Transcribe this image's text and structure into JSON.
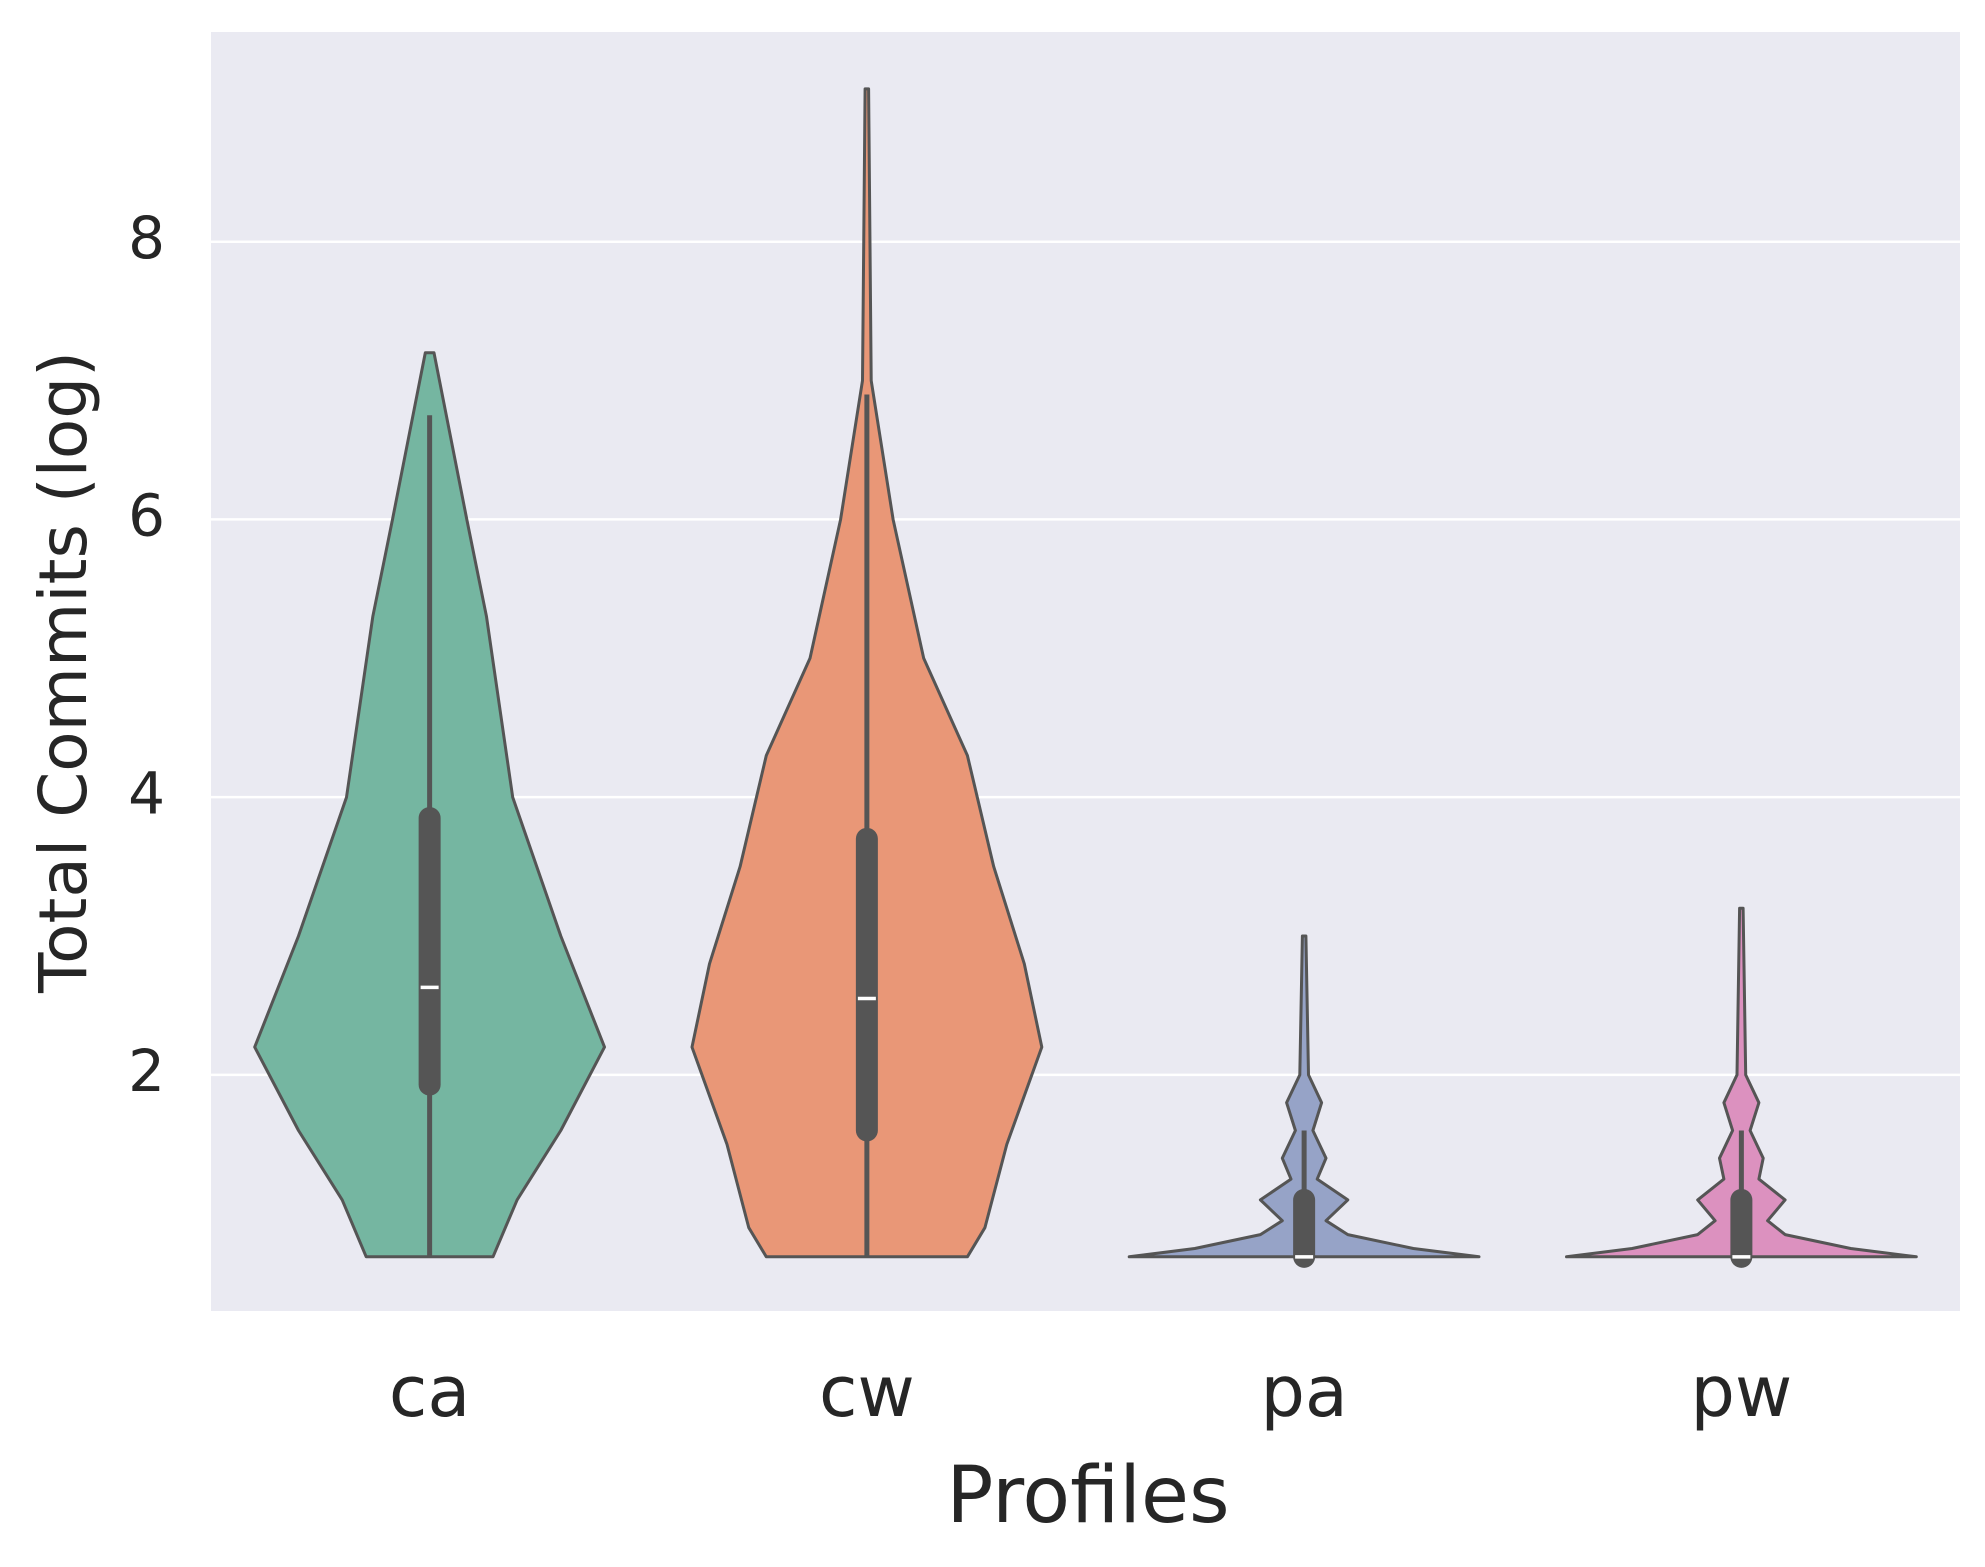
{
  "chart_data": {
    "type": "violin",
    "x_label": "Profiles",
    "y_label": "Total Commits (log)",
    "categories": [
      "ca",
      "cw",
      "pa",
      "pw"
    ],
    "ylim": [
      0.3,
      9.51
    ],
    "yticks": [
      2,
      4,
      6,
      8
    ],
    "grid": true,
    "series": [
      {
        "name": "ca",
        "color": "#75b6a1",
        "y_points": [
          0.69,
          1.1,
          1.6,
          2.2,
          3.0,
          4.0,
          5.3,
          6.0,
          7.2
        ],
        "half_widths": [
          0.145,
          0.2,
          0.3,
          0.4,
          0.3,
          0.19,
          0.13,
          0.085,
          0.01
        ],
        "whisker_low": 0.69,
        "q1": 1.93,
        "median": 2.63,
        "q3": 3.85,
        "whisker_high": 6.75
      },
      {
        "name": "cw",
        "color": "#e99777",
        "y_points": [
          0.69,
          0.9,
          1.5,
          2.2,
          2.8,
          3.5,
          4.3,
          5.0,
          6.0,
          7.0,
          9.1
        ],
        "half_widths": [
          0.23,
          0.27,
          0.32,
          0.4,
          0.36,
          0.29,
          0.23,
          0.13,
          0.06,
          0.01,
          0.004
        ],
        "whisker_low": 0.69,
        "q1": 1.6,
        "median": 2.55,
        "q3": 3.7,
        "whisker_high": 6.9
      },
      {
        "name": "pa",
        "color": "#96a3c7",
        "y_points": [
          0.69,
          0.75,
          0.85,
          0.95,
          1.1,
          1.25,
          1.4,
          1.6,
          1.8,
          2.0,
          3.0
        ],
        "half_widths": [
          0.4,
          0.25,
          0.1,
          0.05,
          0.1,
          0.03,
          0.05,
          0.02,
          0.04,
          0.01,
          0.004
        ],
        "whisker_low": 0.69,
        "q1": 0.69,
        "median": 0.69,
        "q3": 1.1,
        "whisker_high": 1.6
      },
      {
        "name": "pw",
        "color": "#dc91bf",
        "y_points": [
          0.69,
          0.75,
          0.85,
          0.95,
          1.1,
          1.25,
          1.4,
          1.6,
          1.8,
          2.0,
          3.2
        ],
        "half_widths": [
          0.4,
          0.25,
          0.1,
          0.06,
          0.1,
          0.04,
          0.05,
          0.02,
          0.04,
          0.01,
          0.004
        ],
        "whisker_low": 0.69,
        "q1": 0.69,
        "median": 0.69,
        "q3": 1.1,
        "whisker_high": 1.6
      }
    ]
  }
}
